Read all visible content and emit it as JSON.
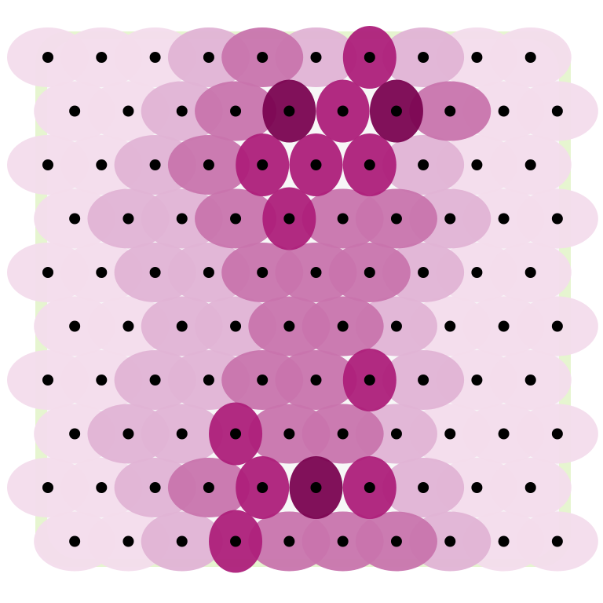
{
  "chart_data": {
    "type": "scatter",
    "level_colors": [
      "#e6f5d0",
      "#f7f7f7",
      "#f3dcec",
      "#e0b3d5",
      "#c874ad",
      "#ad1f7a",
      "#7a0451"
    ],
    "point_color": "#000000",
    "rows": [
      {
        "y": 0,
        "x": [
          0,
          1,
          2,
          3,
          4,
          5,
          6,
          7,
          8,
          9
        ],
        "values": [
          2,
          2,
          2,
          3,
          4,
          3,
          5,
          3,
          2,
          2
        ]
      },
      {
        "y": 1,
        "x": [
          0.5,
          1.5,
          2.5,
          3.5,
          4.5,
          5.5,
          6.5,
          7.5,
          8.5,
          9.5
        ],
        "values": [
          2,
          2,
          3,
          4,
          6,
          5,
          6,
          4,
          2,
          2
        ]
      },
      {
        "y": 2,
        "x": [
          0,
          1,
          2,
          3,
          4,
          5,
          6,
          7,
          8,
          9
        ],
        "values": [
          2,
          2,
          3,
          4,
          5,
          5,
          5,
          3,
          2,
          2
        ]
      },
      {
        "y": 3,
        "x": [
          0.5,
          1.5,
          2.5,
          3.5,
          4.5,
          5.5,
          6.5,
          7.5,
          8.5,
          9.5
        ],
        "values": [
          2,
          3,
          3,
          4,
          5,
          4,
          4,
          3,
          2,
          2
        ]
      },
      {
        "y": 4,
        "x": [
          0,
          1,
          2,
          3,
          4,
          5,
          6,
          7,
          8,
          9
        ],
        "values": [
          2,
          2,
          3,
          3,
          4,
          4,
          4,
          3,
          2,
          2
        ]
      },
      {
        "y": 5,
        "x": [
          0.5,
          1.5,
          2.5,
          3.5,
          4.5,
          5.5,
          6.5,
          7.5,
          8.5,
          9.5
        ],
        "values": [
          2,
          2,
          3,
          3,
          4,
          4,
          3,
          2,
          2,
          2
        ]
      },
      {
        "y": 6,
        "x": [
          0,
          1,
          2,
          3,
          4,
          5,
          6,
          7,
          8,
          9
        ],
        "values": [
          2,
          2,
          3,
          3,
          4,
          4,
          5,
          3,
          2,
          2
        ]
      },
      {
        "y": 7,
        "x": [
          0.5,
          1.5,
          2.5,
          3.5,
          4.5,
          5.5,
          6.5,
          7.5,
          8.5,
          9.5
        ],
        "values": [
          2,
          3,
          3,
          5,
          4,
          4,
          3,
          2,
          2,
          2
        ]
      },
      {
        "y": 8,
        "x": [
          0,
          1,
          2,
          3,
          4,
          5,
          6,
          7,
          8,
          9
        ],
        "values": [
          2,
          2,
          3,
          4,
          5,
          6,
          5,
          3,
          2,
          2
        ]
      },
      {
        "y": 9,
        "x": [
          0.5,
          1.5,
          2.5,
          3.5,
          4.5,
          5.5,
          6.5,
          7.5,
          8.5,
          9.5
        ],
        "values": [
          2,
          2,
          3,
          5,
          4,
          4,
          4,
          3,
          2,
          2
        ]
      }
    ]
  }
}
